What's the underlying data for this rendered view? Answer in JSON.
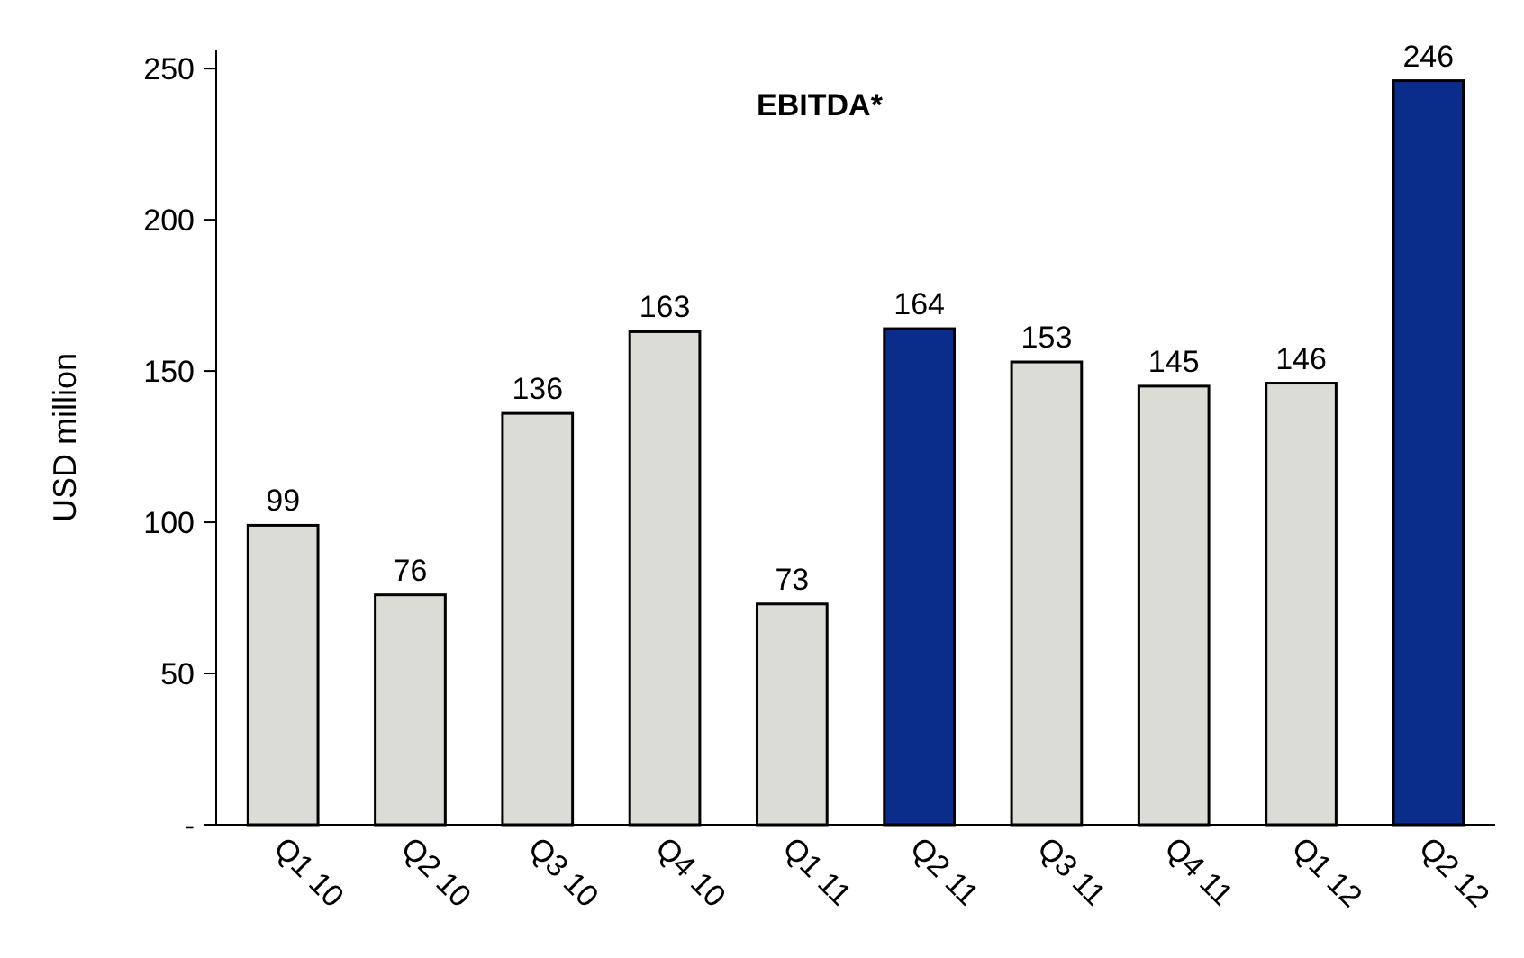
{
  "chart_data": {
    "type": "bar",
    "title": "EBITDA*",
    "ylabel": "USD million",
    "categories": [
      "Q1 10",
      "Q2 10",
      "Q3 10",
      "Q4 10",
      "Q1 11",
      "Q2 11",
      "Q3 11",
      "Q4 11",
      "Q1 12",
      "Q2 12"
    ],
    "values": [
      99,
      76,
      136,
      163,
      73,
      164,
      153,
      145,
      146,
      246
    ],
    "colors": [
      "#dcdcd6",
      "#dcdcd6",
      "#dcdcd6",
      "#dcdcd6",
      "#dcdcd6",
      "#0a2d8c",
      "#dcdcd6",
      "#dcdcd6",
      "#dcdcd6",
      "#0a2d8c"
    ],
    "ylim": [
      0,
      256
    ],
    "yticks": [
      {
        "value": 0,
        "label": "-"
      },
      50,
      100,
      150,
      200,
      250
    ],
    "data_labels": true,
    "grid": false
  }
}
